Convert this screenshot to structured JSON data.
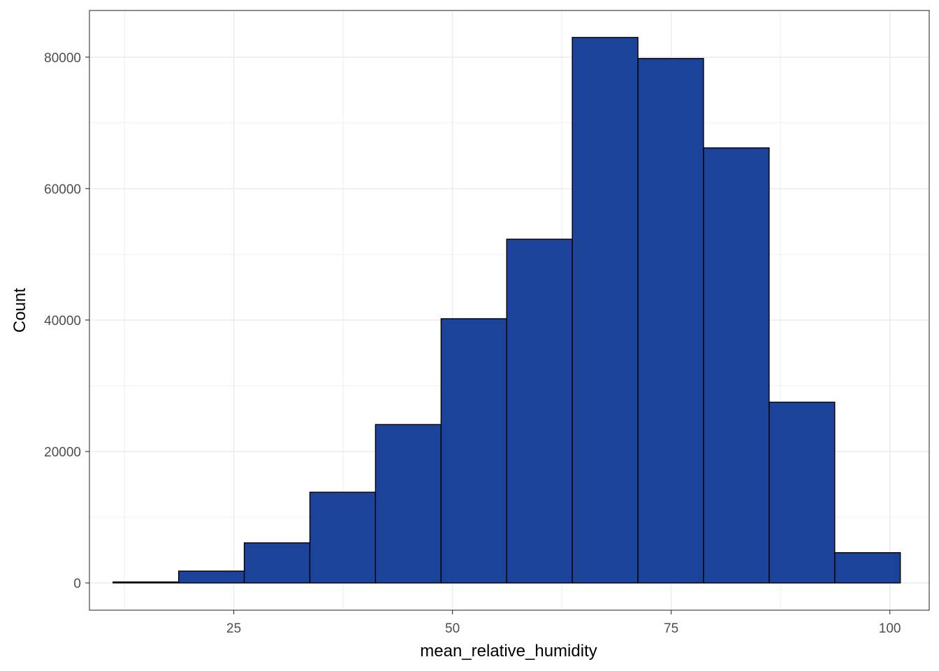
{
  "chart_data": {
    "type": "bar",
    "subtype": "histogram",
    "xlabel": "mean_relative_humidity",
    "ylabel": "Count",
    "xlim": [
      8.5,
      104.5
    ],
    "ylim": [
      -4150,
      87100
    ],
    "x_ticks": [
      25,
      50,
      75,
      100
    ],
    "x_tick_labels": [
      "25",
      "50",
      "75",
      "100"
    ],
    "y_ticks": [
      0,
      20000,
      40000,
      60000,
      80000
    ],
    "y_tick_labels": [
      "0",
      "20000",
      "40000",
      "60000",
      "80000"
    ],
    "x_minor_ticks": [
      12.5,
      37.5,
      62.5,
      87.5
    ],
    "y_minor_ticks": [
      10000,
      30000,
      50000,
      70000
    ],
    "grid": true,
    "legend": "none",
    "bin_edges": [
      11.2,
      18.7,
      26.2,
      33.7,
      41.2,
      48.7,
      56.2,
      63.7,
      71.2,
      78.7,
      86.2,
      93.7,
      101.2
    ],
    "values": [
      150,
      1800,
      6100,
      13800,
      24100,
      40200,
      52300,
      83000,
      79800,
      66200,
      27500,
      4600
    ],
    "bar_color": "#1A4399",
    "bar_outline_color": "#000000",
    "grid_color": "#EBEBEB",
    "panel_border_color": "#333333"
  }
}
